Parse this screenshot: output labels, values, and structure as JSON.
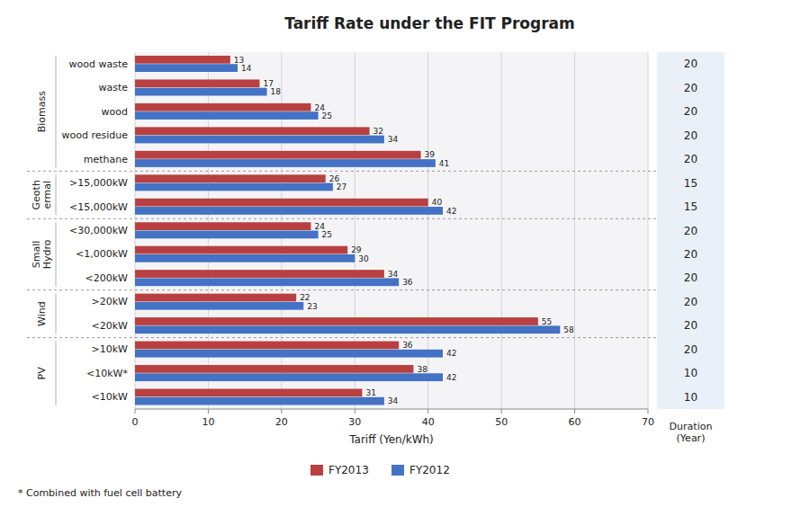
{
  "chart_data": {
    "type": "bar",
    "orientation": "horizontal",
    "title": "Tariff Rate under the FIT Program",
    "categories": [
      "wood waste",
      "waste",
      "wood",
      "wood residue",
      "methane",
      ">15,000kW",
      "<15,000kW",
      "<30,000kW",
      "<1,000kW",
      "<200kW",
      ">20kW",
      "<20kW",
      ">10kW",
      "<10kW*",
      "<10kW"
    ],
    "series": [
      {
        "name": "FY2013",
        "color": "#b94040",
        "values": [
          13,
          17,
          24,
          32,
          39,
          26,
          40,
          24,
          29,
          34,
          22,
          55,
          36,
          38,
          31
        ]
      },
      {
        "name": "FY2012",
        "color": "#4472c4",
        "values": [
          14,
          18,
          25,
          34,
          41,
          27,
          42,
          25,
          30,
          36,
          23,
          58,
          42,
          42,
          34
        ]
      }
    ],
    "groups": [
      {
        "label": "Biomass",
        "span": [
          0,
          4
        ]
      },
      {
        "label": "Geoth\nermal",
        "span": [
          5,
          6
        ]
      },
      {
        "label": "Small\nHydro",
        "span": [
          7,
          9
        ]
      },
      {
        "label": "Wind",
        "span": [
          10,
          11
        ]
      },
      {
        "label": "PV",
        "span": [
          12,
          14
        ]
      }
    ],
    "duration": {
      "label": "Duration\n(Year)",
      "values": [
        20,
        20,
        20,
        20,
        20,
        15,
        15,
        20,
        20,
        20,
        20,
        20,
        20,
        10,
        10
      ]
    },
    "xlim": [
      0,
      70
    ],
    "xticks": [
      0,
      10,
      20,
      30,
      40,
      50,
      60,
      70
    ],
    "xlabel": "Tariff (Yen/kWh)",
    "data_labels": true,
    "grid": true,
    "legend": "bottom",
    "footnote": "* Combined with fuel cell battery"
  }
}
